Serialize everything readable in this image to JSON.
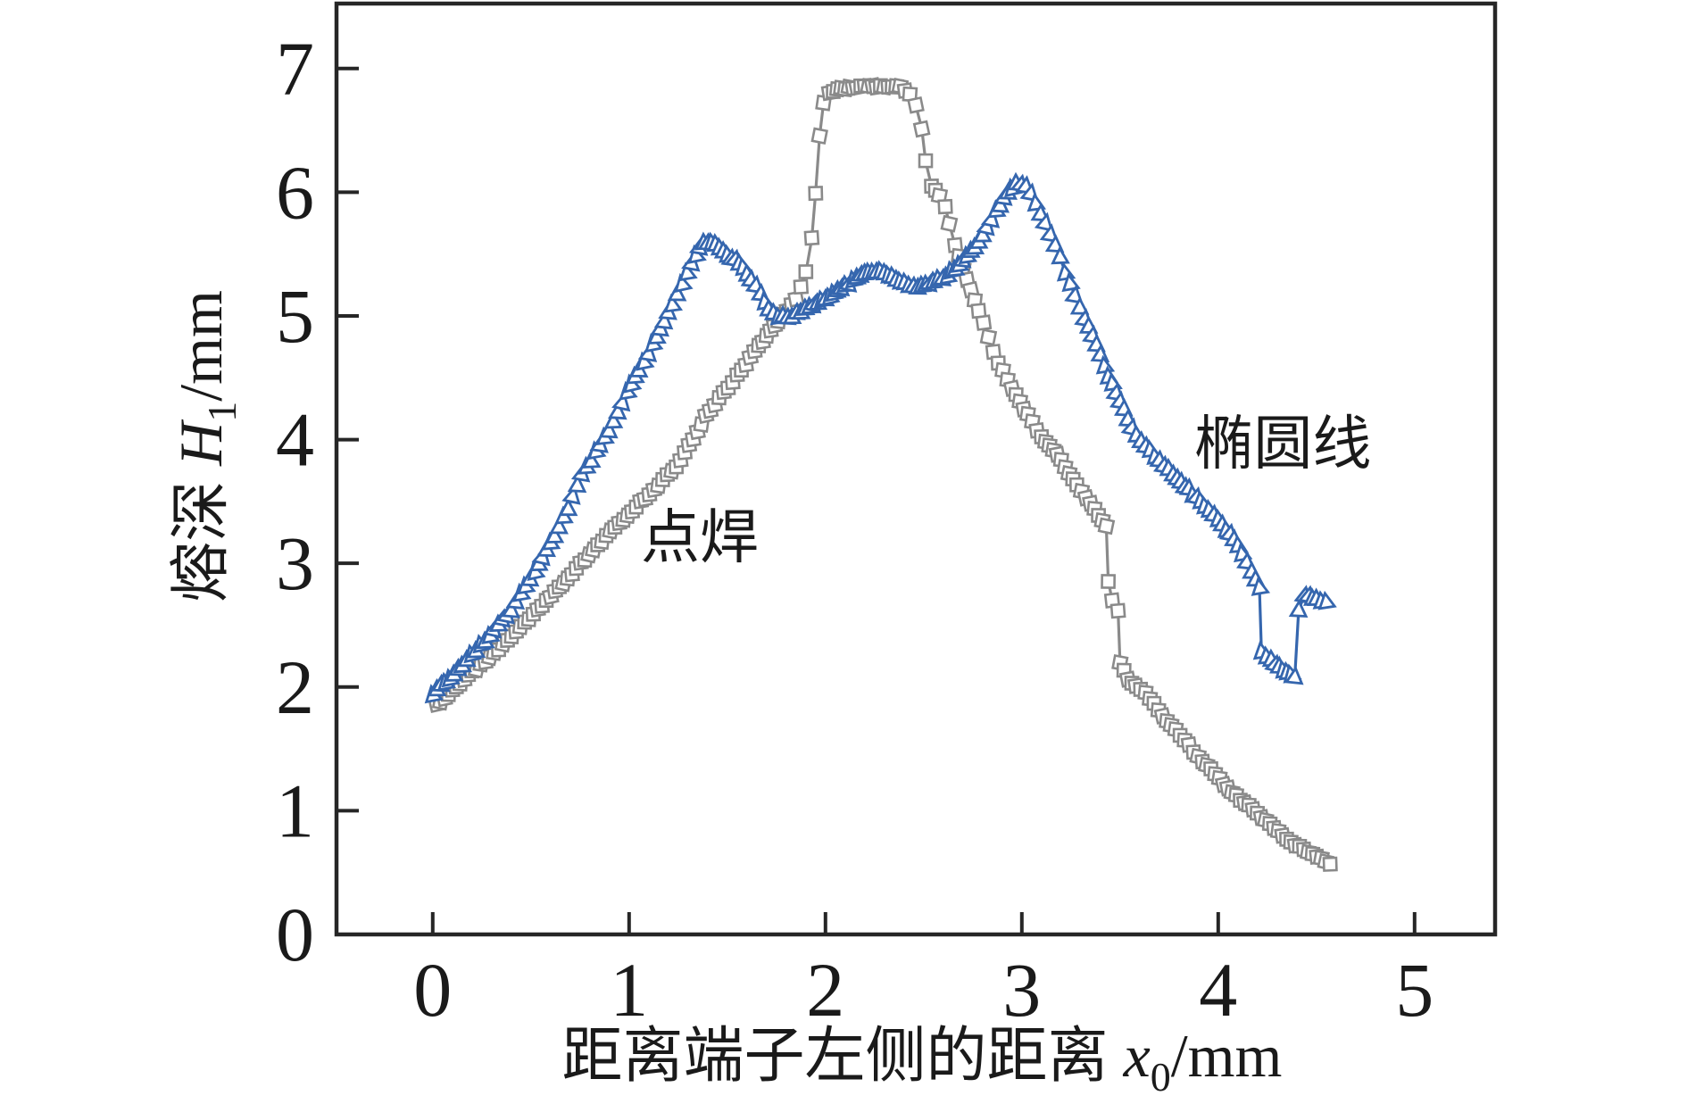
{
  "chart_data": {
    "type": "line",
    "title": "",
    "xlabel": {
      "prefix": "距离端子左侧的距离 ",
      "var": "x",
      "sub": "0",
      "suffix": "/mm"
    },
    "ylabel": {
      "prefix": "熔深 ",
      "var": "H",
      "sub": "1",
      "suffix": "/mm"
    },
    "x_ticks": [
      "0",
      "1",
      "2",
      "3",
      "4",
      "5"
    ],
    "x_tick_values": [
      0,
      1,
      2,
      3,
      4,
      5
    ],
    "y_ticks": [
      "0",
      "1",
      "2",
      "3",
      "4",
      "5",
      "6",
      "7"
    ],
    "y_tick_values": [
      0,
      1,
      2,
      3,
      4,
      5,
      6,
      7
    ],
    "xlim": [
      -0.49,
      5.41
    ],
    "ylim": [
      0,
      7.525
    ],
    "grid": false,
    "legend_position": "inline-annotations",
    "marker_step_x": 0.022,
    "axis_color": "#262626",
    "series": [
      {
        "name": "点焊",
        "marker": "square",
        "color": "#8a8a8a",
        "label_pos": [
          1.36,
          3.22
        ],
        "points": [
          [
            0.02,
            1.85
          ],
          [
            0.1,
            1.97
          ],
          [
            0.2,
            2.12
          ],
          [
            0.38,
            2.37
          ],
          [
            0.6,
            2.73
          ],
          [
            0.84,
            3.15
          ],
          [
            1.08,
            3.53
          ],
          [
            1.24,
            3.78
          ],
          [
            1.39,
            4.19
          ],
          [
            1.55,
            4.52
          ],
          [
            1.66,
            4.76
          ],
          [
            1.76,
            4.96
          ],
          [
            1.85,
            5.14
          ],
          [
            1.9,
            5.35
          ],
          [
            1.93,
            5.62
          ],
          [
            1.95,
            6.0
          ],
          [
            1.97,
            6.45
          ],
          [
            1.99,
            6.72
          ],
          [
            2.02,
            6.8
          ],
          [
            2.08,
            6.84
          ],
          [
            2.18,
            6.85
          ],
          [
            2.28,
            6.86
          ],
          [
            2.38,
            6.86
          ],
          [
            2.43,
            6.8
          ],
          [
            2.46,
            6.7
          ],
          [
            2.49,
            6.52
          ],
          [
            2.51,
            6.25
          ],
          [
            2.54,
            6.05
          ],
          [
            2.58,
            5.97
          ],
          [
            2.61,
            5.88
          ],
          [
            2.63,
            5.75
          ],
          [
            2.66,
            5.57
          ],
          [
            2.7,
            5.38
          ],
          [
            2.74,
            5.22
          ],
          [
            2.78,
            5.05
          ],
          [
            2.83,
            4.82
          ],
          [
            2.88,
            4.62
          ],
          [
            2.95,
            4.42
          ],
          [
            3.03,
            4.2
          ],
          [
            3.1,
            4.02
          ],
          [
            3.16,
            3.92
          ],
          [
            3.22,
            3.78
          ],
          [
            3.28,
            3.64
          ],
          [
            3.35,
            3.48
          ],
          [
            3.41,
            3.34
          ],
          [
            3.43,
            3.3
          ],
          [
            3.44,
            2.86
          ],
          [
            3.46,
            2.7
          ],
          [
            3.49,
            2.62
          ],
          [
            3.5,
            2.2
          ],
          [
            3.54,
            2.07
          ],
          [
            3.58,
            2.01
          ],
          [
            3.63,
            1.95
          ],
          [
            3.76,
            1.69
          ],
          [
            3.92,
            1.4
          ],
          [
            4.07,
            1.15
          ],
          [
            4.22,
            0.95
          ],
          [
            4.37,
            0.75
          ],
          [
            4.48,
            0.65
          ],
          [
            4.57,
            0.56
          ]
        ]
      },
      {
        "name": "椭圆线",
        "marker": "triangle",
        "color": "#3566ae",
        "label_pos": [
          4.33,
          3.98
        ],
        "points": [
          [
            0.0,
            1.95
          ],
          [
            0.15,
            2.18
          ],
          [
            0.29,
            2.42
          ],
          [
            0.4,
            2.63
          ],
          [
            0.52,
            2.93
          ],
          [
            0.62,
            3.22
          ],
          [
            0.69,
            3.45
          ],
          [
            0.76,
            3.72
          ],
          [
            0.83,
            3.9
          ],
          [
            0.92,
            4.14
          ],
          [
            0.99,
            4.38
          ],
          [
            1.05,
            4.57
          ],
          [
            1.1,
            4.7
          ],
          [
            1.16,
            4.9
          ],
          [
            1.22,
            5.1
          ],
          [
            1.27,
            5.27
          ],
          [
            1.32,
            5.44
          ],
          [
            1.38,
            5.6
          ],
          [
            1.44,
            5.58
          ],
          [
            1.5,
            5.5
          ],
          [
            1.56,
            5.43
          ],
          [
            1.62,
            5.3
          ],
          [
            1.67,
            5.18
          ],
          [
            1.71,
            5.06
          ],
          [
            1.76,
            5.0
          ],
          [
            1.83,
            5.0
          ],
          [
            1.92,
            5.08
          ],
          [
            2.0,
            5.14
          ],
          [
            2.1,
            5.25
          ],
          [
            2.2,
            5.35
          ],
          [
            2.3,
            5.36
          ],
          [
            2.38,
            5.28
          ],
          [
            2.47,
            5.24
          ],
          [
            2.55,
            5.28
          ],
          [
            2.62,
            5.33
          ],
          [
            2.68,
            5.42
          ],
          [
            2.74,
            5.52
          ],
          [
            2.8,
            5.65
          ],
          [
            2.87,
            5.85
          ],
          [
            2.93,
            6.0
          ],
          [
            2.97,
            6.08
          ],
          [
            3.02,
            6.05
          ],
          [
            3.07,
            5.92
          ],
          [
            3.12,
            5.75
          ],
          [
            3.17,
            5.58
          ],
          [
            3.22,
            5.36
          ],
          [
            3.27,
            5.17
          ],
          [
            3.32,
            4.98
          ],
          [
            3.38,
            4.78
          ],
          [
            3.44,
            4.52
          ],
          [
            3.5,
            4.32
          ],
          [
            3.56,
            4.1
          ],
          [
            3.63,
            3.95
          ],
          [
            3.7,
            3.84
          ],
          [
            3.77,
            3.72
          ],
          [
            3.85,
            3.6
          ],
          [
            3.93,
            3.47
          ],
          [
            4.0,
            3.36
          ],
          [
            4.06,
            3.24
          ],
          [
            4.12,
            3.09
          ],
          [
            4.17,
            2.94
          ],
          [
            4.21,
            2.8
          ],
          [
            4.22,
            2.3
          ],
          [
            4.27,
            2.22
          ],
          [
            4.33,
            2.14
          ],
          [
            4.39,
            2.08
          ],
          [
            4.41,
            2.63
          ],
          [
            4.44,
            2.74
          ],
          [
            4.5,
            2.71
          ],
          [
            4.55,
            2.7
          ]
        ]
      }
    ]
  }
}
